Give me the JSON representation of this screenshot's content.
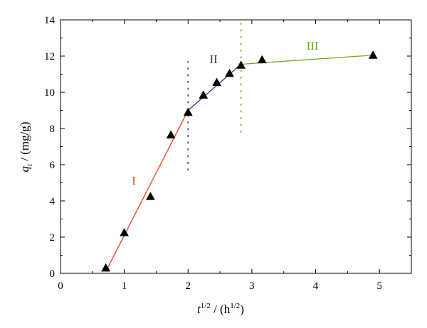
{
  "chart_data": {
    "type": "scatter",
    "title": "",
    "xlabel": {
      "main": "t",
      "sup": "1/2",
      "rest": " / (h",
      "unit_sup": "1/2",
      "end": ")"
    },
    "ylabel": {
      "main": "q",
      "sub": "t",
      "rest": " / (mg/g)"
    },
    "xlim": [
      0,
      5.5
    ],
    "ylim": [
      0,
      14
    ],
    "x_ticks": [
      0,
      1,
      2,
      3,
      4,
      5
    ],
    "y_ticks": [
      0,
      2,
      4,
      6,
      8,
      10,
      12,
      14
    ],
    "grid": false,
    "points": [
      {
        "x": 0.71,
        "y": 0.3
      },
      {
        "x": 1.0,
        "y": 2.25
      },
      {
        "x": 1.41,
        "y": 4.25
      },
      {
        "x": 1.73,
        "y": 7.65
      },
      {
        "x": 2.0,
        "y": 8.9
      },
      {
        "x": 2.24,
        "y": 9.85
      },
      {
        "x": 2.45,
        "y": 10.55
      },
      {
        "x": 2.65,
        "y": 11.05
      },
      {
        "x": 2.83,
        "y": 11.5
      },
      {
        "x": 3.16,
        "y": 11.8
      },
      {
        "x": 4.9,
        "y": 12.05
      }
    ],
    "fit_lines": [
      {
        "name": "I",
        "color": "#e0461f",
        "x": [
          0.71,
          2.0
        ],
        "y": [
          0.1,
          9.0
        ],
        "label_pos": {
          "x": 1.15,
          "y": 4.9
        }
      },
      {
        "name": "II",
        "color": "#2c2f8c",
        "x": [
          2.0,
          2.83
        ],
        "y": [
          9.0,
          11.55
        ],
        "label_pos": {
          "x": 2.4,
          "y": 11.6
        }
      },
      {
        "name": "III",
        "color": "#6aaa2a",
        "x": [
          2.83,
          4.9
        ],
        "y": [
          11.55,
          12.05
        ],
        "label_pos": {
          "x": 3.95,
          "y": 12.35
        }
      }
    ],
    "dividers": [
      {
        "x": 2.0,
        "y": [
          5.7,
          11.7
        ],
        "color": "#2c2f8c"
      },
      {
        "x": 2.83,
        "y": [
          7.8,
          13.9
        ],
        "color": "#6aaa2a"
      }
    ]
  }
}
